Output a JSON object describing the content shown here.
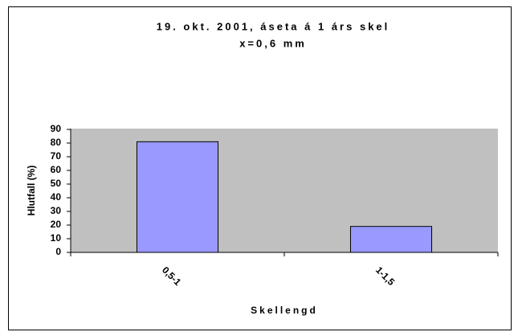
{
  "chart_data": {
    "type": "bar",
    "title": "19. okt. 2001, áseta á 1 árs skel",
    "subtitle": "x=0,6 mm",
    "y_label": "Hlutfall (%)",
    "x_label": "Skellengd",
    "categories": [
      "0,5-1",
      "1-1,5"
    ],
    "values": [
      81,
      19
    ],
    "color": "#9999ff",
    "ylim": [
      0,
      90
    ],
    "yticks": [
      0,
      10,
      20,
      30,
      40,
      50,
      60,
      70,
      80,
      90
    ],
    "grid": false
  }
}
